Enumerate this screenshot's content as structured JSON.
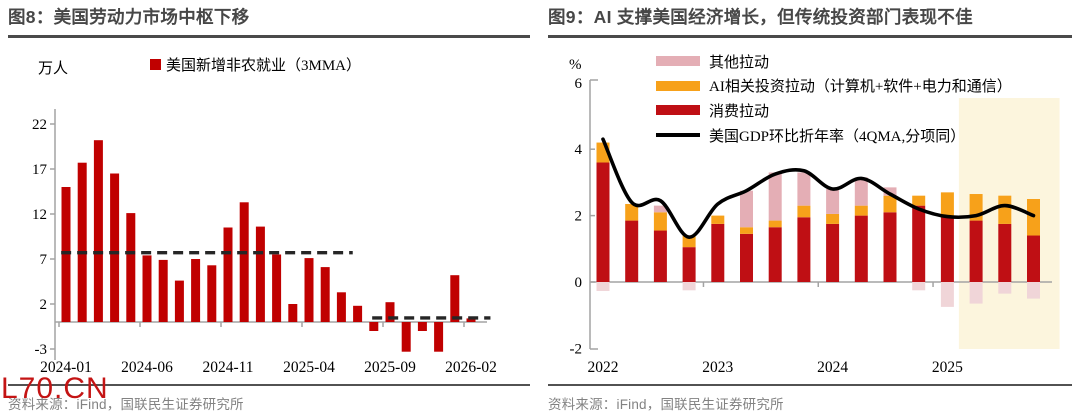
{
  "watermark": {
    "text": "L70.CN",
    "color": "#c41414"
  },
  "figure8": {
    "title": "图8：美国劳动力市场中枢下移",
    "unit_label": "万人",
    "legend": [
      {
        "label": "美国新增非农就业（3MMA）",
        "color": "#c00000",
        "type": "square"
      }
    ],
    "source": "资料来源：iFind，国联民生证券研究所",
    "chart_data": {
      "type": "bar",
      "title": "美国新增非农就业（3MMA）",
      "ylabel": "万人",
      "bar_color": "#c00000",
      "categories": [
        "2024-01",
        "2024-02",
        "2024-03",
        "2024-04",
        "2024-05",
        "2024-06",
        "2024-07",
        "2024-08",
        "2024-09",
        "2024-10",
        "2024-11",
        "2024-12",
        "2025-01",
        "2025-02",
        "2025-03",
        "2025-04",
        "2025-05",
        "2025-06",
        "2025-07",
        "2025-08",
        "2025-09",
        "2025-10",
        "2025-11",
        "2025-12",
        "2026-01",
        "2026-02"
      ],
      "values": [
        15.0,
        17.7,
        20.2,
        16.5,
        12.1,
        7.4,
        6.9,
        4.6,
        7.0,
        6.3,
        10.5,
        13.3,
        10.6,
        7.5,
        2.0,
        7.1,
        6.1,
        3.3,
        1.8,
        -1.0,
        2.2,
        -3.3,
        -1.0,
        -3.3,
        5.2,
        0.4
      ],
      "y_ticks": [
        22,
        17,
        12,
        7,
        2,
        -3
      ],
      "ylim": [
        -4.5,
        23.5
      ],
      "x_tick_labels": [
        "2024-01",
        "2024-06",
        "2024-11",
        "2025-04",
        "2025-09",
        "2026-02"
      ],
      "x_tick_indices": [
        0,
        5,
        10,
        15,
        20,
        25
      ],
      "dashed_reference_lines": [
        {
          "value": 7.7,
          "from_index": -0.3,
          "to_index": 17.7,
          "color": "#262626"
        },
        {
          "value": 0.45,
          "from_index": 18.9,
          "to_index": 26.2,
          "color": "#262626"
        }
      ],
      "grid": false
    }
  },
  "figure9": {
    "title": "图9：AI 支撑美国经济增长，但传统投资部门表现不佳",
    "unit_label": "%",
    "legend": [
      {
        "label": "其他拉动",
        "color": "#e4aeb5",
        "type": "bar"
      },
      {
        "label": "AI相关投资拉动（计算机+软件+电力和通信）",
        "color": "#f7a11a",
        "type": "bar"
      },
      {
        "label": "消费拉动",
        "color": "#bf0f14",
        "type": "bar"
      },
      {
        "label": "美国GDP环比折年率（4QMA,分项同）",
        "color": "#000000",
        "type": "line"
      }
    ],
    "source": "资料来源：iFind，国联民生证券研究所",
    "chart_data": {
      "type": "stacked-bar-line",
      "ylabel": "%",
      "categories": [
        "2022Q1",
        "2022Q2",
        "2022Q3",
        "2022Q4",
        "2023Q1",
        "2023Q2",
        "2023Q3",
        "2023Q4",
        "2024Q1",
        "2024Q2",
        "2024Q3",
        "2024Q4",
        "2025Q1",
        "2025Q2",
        "2025Q3",
        "2025Q4"
      ],
      "series": [
        {
          "name": "消费拉动",
          "color": "#bf0f14",
          "values": [
            3.6,
            1.85,
            1.55,
            1.05,
            1.75,
            1.45,
            1.65,
            1.95,
            1.75,
            2.0,
            2.1,
            2.3,
            1.95,
            1.85,
            1.75,
            1.4
          ]
        },
        {
          "name": "AI相关投资拉动（计算机+软件+电力和通信）",
          "color": "#f7a11a",
          "values": [
            0.6,
            0.5,
            0.55,
            0.35,
            0.25,
            0.2,
            0.2,
            0.35,
            0.3,
            0.3,
            0.5,
            0.3,
            0.75,
            0.8,
            0.85,
            1.1
          ]
        },
        {
          "name": "其他拉动",
          "color_positive": "#e4aeb5",
          "color_negative": "#f0d5d8",
          "values": [
            -0.27,
            0,
            0.2,
            -0.25,
            0,
            1.1,
            1.45,
            1.0,
            0.75,
            0.85,
            0.25,
            -0.25,
            -0.75,
            -0.65,
            -0.35,
            -0.5
          ]
        }
      ],
      "line": {
        "name": "美国GDP环比折年率（4QMA,分项同）",
        "color": "#000000",
        "values": [
          4.3,
          2.4,
          2.45,
          1.35,
          2.35,
          2.75,
          3.25,
          3.35,
          2.8,
          3.12,
          2.65,
          2.2,
          1.97,
          2.0,
          2.3,
          2.0
        ]
      },
      "highlight_band": {
        "color": "#fcf5dd",
        "from_index": 12.4,
        "to_index": 15.7
      },
      "y_ticks": [
        6,
        4,
        2,
        0,
        -2
      ],
      "ylim": [
        -2,
        6.2
      ],
      "x_tick_labels": [
        "2022",
        "2023",
        "2024",
        "2025"
      ],
      "x_tick_indices": [
        0,
        4,
        8,
        12
      ],
      "legend_position": "top",
      "grid": false
    }
  }
}
